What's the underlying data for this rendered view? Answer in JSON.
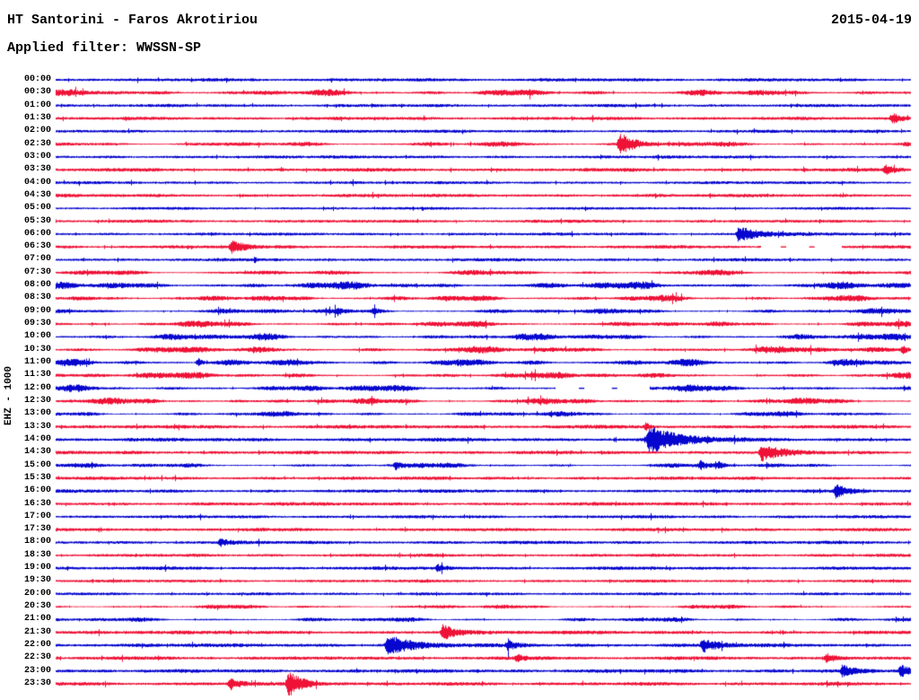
{
  "header": {
    "station_title": "HT Santorini - Faros Akrotiriou",
    "date": "2015-04-19",
    "filter_label": "Applied filter: WWSSN-SP"
  },
  "axis": {
    "left_label": "EHZ - 1000"
  },
  "chart_data": {
    "type": "line",
    "variant": "helicorder-day-plot",
    "title": "HT Santorini - Faros Akrotiriou",
    "date": "2015-04-19",
    "filter": "WWSSN-SP",
    "channel_scale_label": "EHZ - 1000",
    "minutes_per_row": 30,
    "legend": "none",
    "grid": false,
    "colors": {
      "blue": "#0606cf",
      "red": "#ef1237"
    },
    "row_color_pattern": "alternating blue (hour) / red (half-hour)",
    "event_fields": [
      "position_fraction_of_row",
      "peak_amplitude",
      "decay_length_px"
    ],
    "rows": [
      {
        "t": "00:00",
        "a": 1.7,
        "m": 0,
        "ev": []
      },
      {
        "t": "00:30",
        "a": 2.6,
        "m": 1,
        "ev": []
      },
      {
        "t": "01:00",
        "a": 1.6,
        "m": 0,
        "ev": []
      },
      {
        "t": "01:30",
        "a": 1.7,
        "m": 0,
        "ev": [
          [
            0.978,
            6,
            10
          ]
        ]
      },
      {
        "t": "02:00",
        "a": 1.6,
        "m": 0,
        "ev": []
      },
      {
        "t": "02:30",
        "a": 2.1,
        "m": 1,
        "ev": [
          [
            0.659,
            13,
            16
          ]
        ]
      },
      {
        "t": "03:00",
        "a": 1.6,
        "m": 0,
        "ev": []
      },
      {
        "t": "03:30",
        "a": 1.8,
        "m": 0,
        "ev": [
          [
            0.97,
            5,
            9
          ]
        ]
      },
      {
        "t": "04:00",
        "a": 1.5,
        "m": 0,
        "ev": []
      },
      {
        "t": "04:30",
        "a": 1.7,
        "m": 0,
        "ev": []
      },
      {
        "t": "05:00",
        "a": 1.4,
        "m": 0,
        "ev": []
      },
      {
        "t": "05:30",
        "a": 1.6,
        "m": 0,
        "ev": []
      },
      {
        "t": "06:00",
        "a": 1.5,
        "m": 0,
        "ev": [
          [
            0.798,
            8,
            26
          ]
        ]
      },
      {
        "t": "06:30",
        "a": 1.7,
        "m": 0,
        "ev": [
          [
            0.205,
            8,
            13
          ]
        ],
        "gap": [
          [
            0.825,
            0.92
          ]
        ]
      },
      {
        "t": "07:00",
        "a": 1.6,
        "m": 0,
        "ev": []
      },
      {
        "t": "07:30",
        "a": 2.1,
        "m": 1,
        "ev": []
      },
      {
        "t": "08:00",
        "a": 3.0,
        "m": 1,
        "ev": []
      },
      {
        "t": "08:30",
        "a": 2.5,
        "m": 1,
        "ev": []
      },
      {
        "t": "09:00",
        "a": 2.2,
        "m": 1,
        "ev": [
          [
            0.329,
            3.5,
            5
          ],
          [
            0.371,
            3.5,
            5
          ]
        ]
      },
      {
        "t": "09:30",
        "a": 2.4,
        "m": 1,
        "ev": []
      },
      {
        "t": "10:00",
        "a": 2.6,
        "m": 1,
        "ev": []
      },
      {
        "t": "10:30",
        "a": 2.7,
        "m": 1,
        "ev": [
          [
            0.99,
            5,
            7
          ]
        ]
      },
      {
        "t": "11:00",
        "a": 2.7,
        "m": 1,
        "ev": [
          [
            0.166,
            6,
            4
          ]
        ]
      },
      {
        "t": "11:30",
        "a": 2.5,
        "m": 1,
        "ev": []
      },
      {
        "t": "12:00",
        "a": 2.7,
        "m": 1,
        "ev": [],
        "gap": [
          [
            0.585,
            0.695
          ]
        ]
      },
      {
        "t": "12:30",
        "a": 2.5,
        "m": 1,
        "ev": []
      },
      {
        "t": "13:00",
        "a": 2.1,
        "m": 1,
        "ev": []
      },
      {
        "t": "13:30",
        "a": 1.9,
        "m": 0,
        "ev": [
          [
            0.69,
            4,
            5
          ]
        ]
      },
      {
        "t": "14:00",
        "a": 1.9,
        "m": 0,
        "ev": [
          [
            0.693,
            16,
            30
          ]
        ]
      },
      {
        "t": "14:30",
        "a": 1.8,
        "m": 0,
        "ev": [
          [
            0.825,
            9,
            20
          ]
        ]
      },
      {
        "t": "15:00",
        "a": 2.0,
        "m": 1,
        "ev": [
          [
            0.397,
            4.5,
            4
          ],
          [
            0.754,
            4.5,
            4
          ],
          [
            0.775,
            4,
            4
          ]
        ]
      },
      {
        "t": "15:30",
        "a": 1.7,
        "m": 0,
        "ev": []
      },
      {
        "t": "16:00",
        "a": 1.7,
        "m": 0,
        "ev": [
          [
            0.912,
            7,
            13
          ]
        ]
      },
      {
        "t": "16:30",
        "a": 1.8,
        "m": 0,
        "ev": []
      },
      {
        "t": "17:00",
        "a": 1.6,
        "m": 0,
        "ev": []
      },
      {
        "t": "17:30",
        "a": 1.7,
        "m": 0,
        "ev": []
      },
      {
        "t": "18:00",
        "a": 1.7,
        "m": 0,
        "ev": [
          [
            0.192,
            4,
            9
          ]
        ]
      },
      {
        "t": "18:30",
        "a": 1.6,
        "m": 0,
        "ev": []
      },
      {
        "t": "19:00",
        "a": 1.7,
        "m": 0,
        "ev": [
          [
            0.446,
            4,
            11
          ]
        ]
      },
      {
        "t": "19:30",
        "a": 1.5,
        "m": 0,
        "ev": []
      },
      {
        "t": "20:00",
        "a": 1.5,
        "m": 0,
        "ev": []
      },
      {
        "t": "20:30",
        "a": 1.7,
        "m": 1,
        "ev": []
      },
      {
        "t": "21:00",
        "a": 1.8,
        "m": 1,
        "ev": []
      },
      {
        "t": "21:30",
        "a": 1.8,
        "m": 0,
        "ev": [
          [
            0.452,
            10,
            14
          ]
        ]
      },
      {
        "t": "22:00",
        "a": 1.9,
        "m": 0,
        "ev": [
          [
            0.387,
            12,
            24
          ],
          [
            0.528,
            5,
            9
          ],
          [
            0.756,
            8,
            14
          ]
        ]
      },
      {
        "t": "22:30",
        "a": 1.8,
        "m": 0,
        "ev": [
          [
            0.539,
            4,
            7
          ],
          [
            0.901,
            5,
            9
          ]
        ]
      },
      {
        "t": "23:00",
        "a": 1.9,
        "m": 0,
        "ev": [
          [
            0.92,
            6,
            11
          ],
          [
            0.988,
            7,
            9
          ]
        ]
      },
      {
        "t": "23:30",
        "a": 1.8,
        "m": 0,
        "ev": [
          [
            0.203,
            7,
            9
          ],
          [
            0.271,
            14,
            16
          ]
        ]
      }
    ]
  }
}
